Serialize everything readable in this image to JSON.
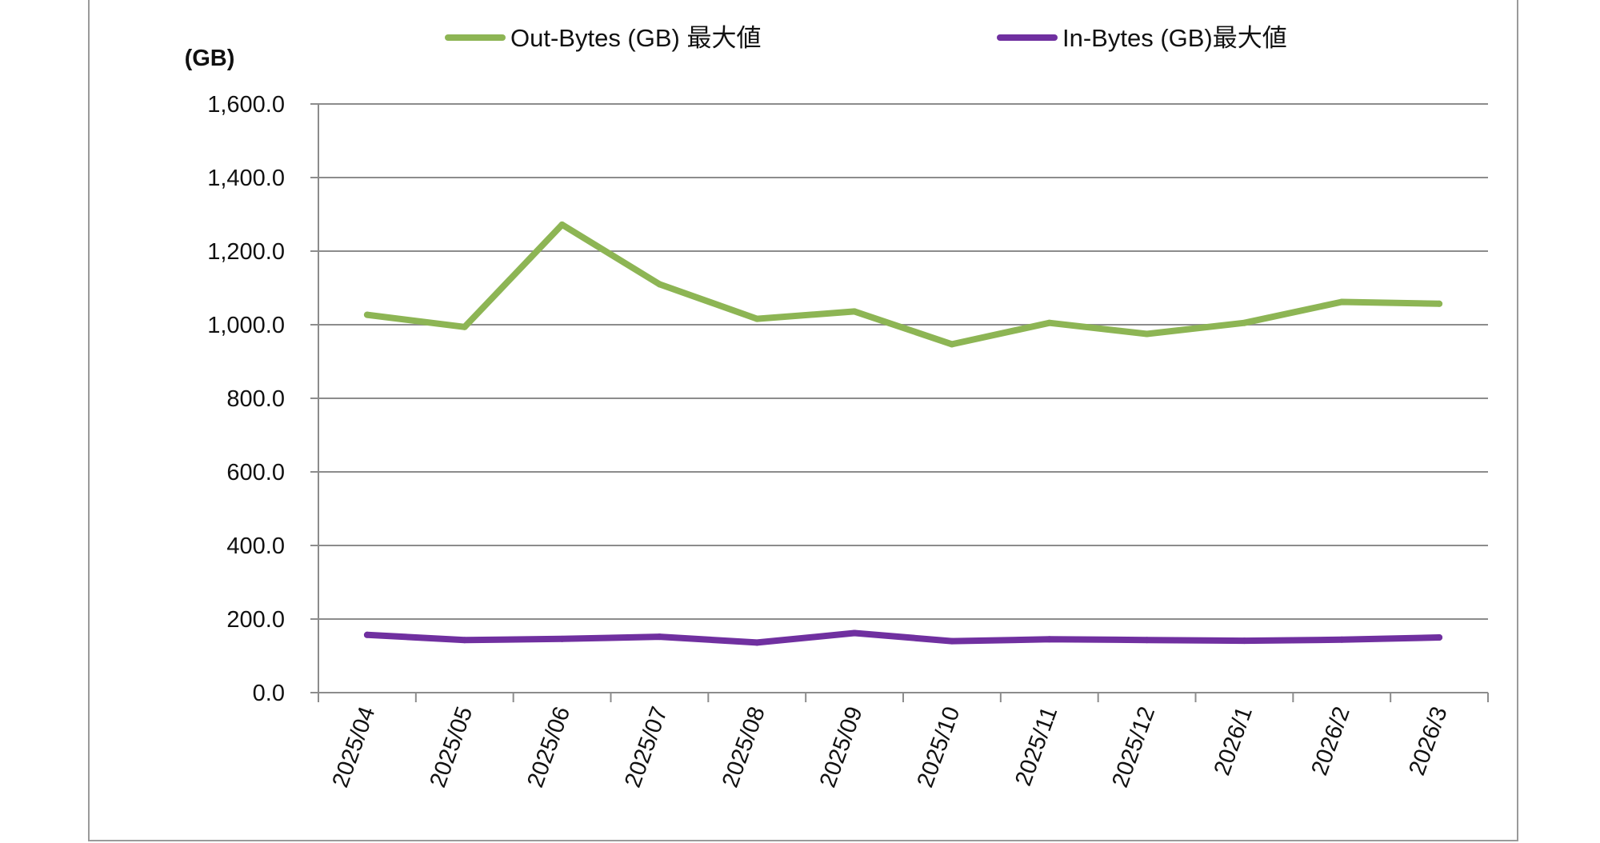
{
  "chart_data": {
    "type": "line",
    "title": "",
    "xlabel": "",
    "ylabel": "(GB)",
    "ylim": [
      0,
      1600
    ],
    "ytick_step": 200,
    "ytick_labels": [
      "0.0",
      "200.0",
      "400.0",
      "600.0",
      "800.0",
      "1,000.0",
      "1,200.0",
      "1,400.0",
      "1,600.0"
    ],
    "grid": true,
    "legend_position": "top",
    "categories": [
      "2025/04",
      "2025/05",
      "2025/06",
      "2025/07",
      "2025/08",
      "2025/09",
      "2025/10",
      "2025/11",
      "2025/12",
      "2026/1",
      "2026/2",
      "2026/3"
    ],
    "series": [
      {
        "name": "Out-Bytes (GB) 最大値",
        "color": "#8db554",
        "values": [
          1027,
          994,
          1272,
          1110,
          1016,
          1036,
          947,
          1005,
          975,
          1005,
          1062,
          1057
        ]
      },
      {
        "name": "In-Bytes (GB)最大値",
        "color": "#7030a0",
        "values": [
          157,
          143,
          146,
          152,
          136,
          162,
          140,
          145,
          143,
          141,
          144,
          150
        ]
      }
    ]
  }
}
